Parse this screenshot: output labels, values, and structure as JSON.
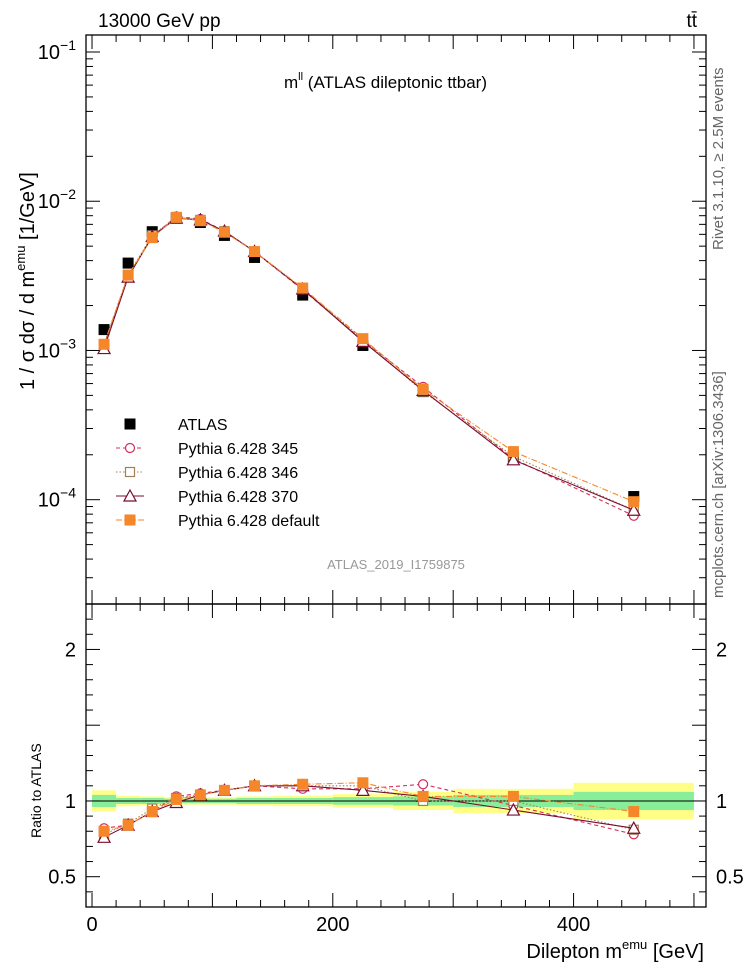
{
  "header": {
    "energy_label": "13000 GeV pp",
    "process_label": "tt̄"
  },
  "side_labels": {
    "rivet": "Rivet 3.1.10, ≥ 2.5M events",
    "mcplots": "mcplots.cern.ch [arXiv:1306.3436]"
  },
  "watermark": "ATLAS_2019_I1759875",
  "chart_data": [
    {
      "type": "line",
      "panel": "main",
      "title": "m^ll (ATLAS dileptonic ttbar)",
      "title_main": "m",
      "title_sup": "ll",
      "title_rest": " (ATLAS dileptonic ttbar)",
      "ylabel": "1 / σ  dσ / d m^emu [1/GeV]",
      "ylabel_parts": {
        "pre": "1 / σ  dσ / d m",
        "sup": "emu",
        "post": " [1/GeV]"
      },
      "yscale": "log",
      "ylim": [
        2e-05,
        0.13
      ],
      "xlim": [
        -5,
        510
      ],
      "yticks": [
        {
          "value": 0.1,
          "base": "10",
          "exp": "−1"
        },
        {
          "value": 0.01,
          "base": "10",
          "exp": "−2"
        },
        {
          "value": 0.001,
          "base": "10",
          "exp": "−3"
        },
        {
          "value": 0.0001,
          "base": "10",
          "exp": "−4"
        }
      ],
      "legend_placement": "bottom-left",
      "x": [
        10,
        30,
        50,
        70,
        90,
        110,
        135,
        175,
        225,
        275,
        350,
        450
      ],
      "series": [
        {
          "name": "ATLAS",
          "marker": "filled-square",
          "color": "#000000",
          "values": [
            0.00138,
            0.00385,
            0.00625,
            0.0077,
            0.0072,
            0.0059,
            0.0042,
            0.00235,
            0.00108,
            0.00053,
            0.000195,
            0.000105
          ]
        },
        {
          "name": "Pythia 6.428 345",
          "marker": "open-circle",
          "color": "#d62d5a",
          "dash": "4,3",
          "values": [
            0.00108,
            0.00315,
            0.0058,
            0.0079,
            0.0076,
            0.0063,
            0.0046,
            0.00255,
            0.00117,
            0.00057,
            0.000188,
            7.8e-05
          ]
        },
        {
          "name": "Pythia 6.428 346",
          "marker": "open-square",
          "color": "#a0805a",
          "dash": "1.5,2",
          "values": [
            0.0011,
            0.0032,
            0.0059,
            0.0078,
            0.0075,
            0.0063,
            0.0046,
            0.0026,
            0.00118,
            0.00053,
            0.000195,
            8.5e-05
          ]
        },
        {
          "name": "Pythia 6.428 370",
          "marker": "open-triangle",
          "color": "#7a0c2c",
          "dash": "",
          "values": [
            0.00103,
            0.0031,
            0.0058,
            0.0077,
            0.0075,
            0.0063,
            0.0046,
            0.00258,
            0.00115,
            0.00054,
            0.000185,
            8.5e-05
          ]
        },
        {
          "name": "Pythia 6.428 default",
          "marker": "filled-square",
          "color": "#f5862a",
          "dash": "6,2,1,2",
          "values": [
            0.0011,
            0.0032,
            0.0057,
            0.0078,
            0.0074,
            0.0062,
            0.0046,
            0.00262,
            0.0012,
            0.00055,
            0.00021,
            9.7e-05
          ]
        }
      ]
    },
    {
      "type": "line",
      "panel": "ratio",
      "ylabel": "Ratio to ATLAS",
      "xlabel": "Dilepton m^emu [GeV]",
      "xlabel_parts": {
        "pre": "Dilepton m",
        "sup": "emu",
        "post": " [GeV]"
      },
      "ylim": [
        0.3,
        2.3
      ],
      "xlim": [
        -5,
        510
      ],
      "yticks": [
        0.5,
        1,
        2
      ],
      "ytick_labels": [
        "0.5",
        "1",
        "2"
      ],
      "xticks": [
        0,
        200,
        400
      ],
      "xtick_labels": [
        "0",
        "200",
        "400"
      ],
      "bins": [
        [
          0,
          20
        ],
        [
          20,
          40
        ],
        [
          40,
          60
        ],
        [
          60,
          80
        ],
        [
          80,
          100
        ],
        [
          100,
          120
        ],
        [
          120,
          150
        ],
        [
          150,
          200
        ],
        [
          200,
          250
        ],
        [
          250,
          300
        ],
        [
          300,
          400
        ],
        [
          400,
          500
        ]
      ],
      "band_green": [
        0.04,
        0.02,
        0.02,
        0.015,
        0.015,
        0.015,
        0.02,
        0.02,
        0.025,
        0.03,
        0.04,
        0.06
      ],
      "band_yellow": [
        0.07,
        0.035,
        0.03,
        0.025,
        0.025,
        0.025,
        0.03,
        0.035,
        0.045,
        0.06,
        0.08,
        0.12
      ],
      "x": [
        10,
        30,
        50,
        70,
        90,
        110,
        135,
        175,
        225,
        275,
        350,
        450
      ],
      "series": [
        {
          "name": "Pythia 6.428 345",
          "marker": "open-circle",
          "color": "#d62d5a",
          "dash": "4,3",
          "values": [
            0.82,
            0.84,
            0.93,
            1.03,
            1.05,
            1.07,
            1.1,
            1.08,
            1.08,
            1.11,
            0.97,
            0.78
          ]
        },
        {
          "name": "Pythia 6.428 346",
          "marker": "open-square",
          "color": "#a0805a",
          "dash": "1.5,2",
          "values": [
            0.78,
            0.85,
            0.95,
            1.02,
            1.04,
            1.07,
            1.1,
            1.1,
            1.1,
            1.0,
            1.0,
            0.81
          ]
        },
        {
          "name": "Pythia 6.428 370",
          "marker": "open-triangle",
          "color": "#7a0c2c",
          "dash": "",
          "values": [
            0.76,
            0.84,
            0.93,
            0.99,
            1.04,
            1.07,
            1.1,
            1.1,
            1.07,
            1.03,
            0.94,
            0.82
          ]
        },
        {
          "name": "Pythia 6.428 default",
          "marker": "filled-square",
          "color": "#f5862a",
          "dash": "6,2,1,2",
          "values": [
            0.8,
            0.84,
            0.93,
            1.01,
            1.04,
            1.07,
            1.1,
            1.11,
            1.12,
            1.03,
            1.03,
            0.93
          ]
        }
      ]
    }
  ]
}
